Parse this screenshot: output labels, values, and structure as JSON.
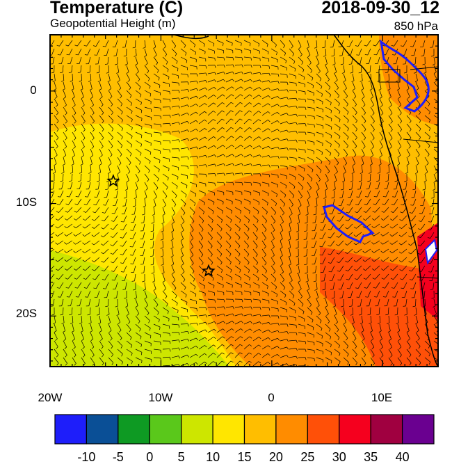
{
  "header": {
    "title": "Temperature (C)",
    "subtitle": "Geopotential Height (m)",
    "datetime": "2018-09-30_12",
    "level": "850 hPa"
  },
  "axes": {
    "lon_labels": [
      "20W",
      "10W",
      "0",
      "10E"
    ],
    "lat_labels": [
      "0",
      "10S",
      "20S"
    ],
    "lon_range": [
      -20,
      15
    ],
    "lat_range": [
      -24.5,
      5
    ]
  },
  "markers": [
    {
      "name": "star-marker-north",
      "lon": -14.3,
      "lat": -8.0
    },
    {
      "name": "star-marker-south",
      "lon": -5.7,
      "lat": -16.0
    }
  ],
  "colorbar": {
    "labels": [
      "-10",
      "-5",
      "0",
      "5",
      "10",
      "15",
      "20",
      "25",
      "30",
      "35",
      "40"
    ],
    "colors": [
      "#1e1efa",
      "#0a4f96",
      "#0e9a23",
      "#5ac81b",
      "#cde600",
      "#ffe600",
      "#ffbe00",
      "#ff8c00",
      "#ff5008",
      "#f5001e",
      "#a00040",
      "#6a0090"
    ]
  }
}
